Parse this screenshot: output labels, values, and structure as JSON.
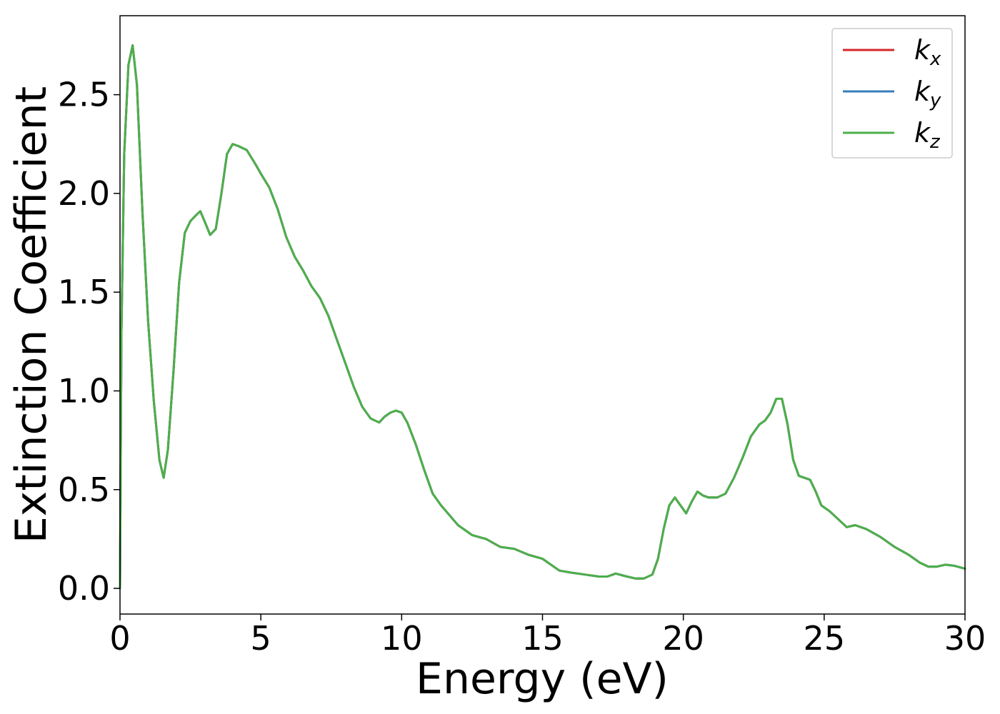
{
  "chart_data": {
    "type": "line",
    "xlabel": "Energy (eV)",
    "ylabel": "Extinction Coefficient",
    "xlim": [
      0,
      30
    ],
    "ylim": [
      -0.13,
      2.9
    ],
    "xticks": [
      0,
      5,
      10,
      15,
      20,
      25,
      30
    ],
    "xtick_labels": [
      "0",
      "5",
      "10",
      "15",
      "20",
      "25",
      "30"
    ],
    "yticks": [
      0.0,
      0.5,
      1.0,
      1.5,
      2.0,
      2.5
    ],
    "ytick_labels": [
      "0.0",
      "0.5",
      "1.0",
      "1.5",
      "2.0",
      "2.5"
    ],
    "grid": false,
    "legend_position": "top-right",
    "series": [
      {
        "name": "k",
        "subscript": "x",
        "color": "#d62728",
        "x": [
          0,
          0.05,
          0.15,
          0.3,
          0.45,
          0.6,
          0.8,
          1.0,
          1.2,
          1.4,
          1.55,
          1.7,
          1.9,
          2.1,
          2.3,
          2.5,
          2.7,
          2.85,
          3.0,
          3.2,
          3.4,
          3.6,
          3.8,
          4.0,
          4.2,
          4.5,
          4.8,
          5.0,
          5.3,
          5.6,
          5.9,
          6.2,
          6.5,
          6.8,
          7.1,
          7.4,
          7.7,
          8.0,
          8.3,
          8.6,
          8.9,
          9.2,
          9.4,
          9.6,
          9.8,
          10.0,
          10.2,
          10.5,
          10.8,
          11.1,
          11.4,
          11.7,
          12.0,
          12.5,
          13.0,
          13.5,
          14.0,
          14.5,
          15.0,
          15.3,
          15.6,
          16.0,
          16.5,
          17.0,
          17.3,
          17.6,
          18.0,
          18.3,
          18.6,
          18.9,
          19.1,
          19.3,
          19.5,
          19.7,
          19.9,
          20.1,
          20.3,
          20.5,
          20.7,
          20.9,
          21.2,
          21.5,
          21.8,
          22.1,
          22.4,
          22.7,
          22.9,
          23.1,
          23.3,
          23.5,
          23.7,
          23.9,
          24.1,
          24.3,
          24.5,
          24.7,
          24.9,
          25.2,
          25.5,
          25.8,
          26.1,
          26.5,
          27.0,
          27.5,
          28.0,
          28.4,
          28.7,
          29.0,
          29.3,
          29.6,
          30.0
        ],
        "y": [
          0.0,
          1.3,
          2.2,
          2.65,
          2.75,
          2.55,
          1.9,
          1.35,
          0.95,
          0.65,
          0.56,
          0.7,
          1.1,
          1.55,
          1.8,
          1.86,
          1.89,
          1.91,
          1.86,
          1.79,
          1.82,
          2.0,
          2.2,
          2.25,
          2.24,
          2.22,
          2.15,
          2.1,
          2.03,
          1.92,
          1.78,
          1.68,
          1.61,
          1.53,
          1.47,
          1.38,
          1.26,
          1.14,
          1.02,
          0.92,
          0.86,
          0.84,
          0.87,
          0.89,
          0.9,
          0.89,
          0.84,
          0.73,
          0.6,
          0.48,
          0.42,
          0.37,
          0.32,
          0.27,
          0.25,
          0.21,
          0.2,
          0.17,
          0.15,
          0.12,
          0.09,
          0.08,
          0.07,
          0.06,
          0.06,
          0.075,
          0.06,
          0.05,
          0.05,
          0.07,
          0.15,
          0.3,
          0.42,
          0.46,
          0.42,
          0.38,
          0.44,
          0.49,
          0.47,
          0.46,
          0.46,
          0.48,
          0.56,
          0.66,
          0.77,
          0.83,
          0.85,
          0.89,
          0.96,
          0.96,
          0.83,
          0.65,
          0.57,
          0.56,
          0.55,
          0.49,
          0.42,
          0.39,
          0.35,
          0.31,
          0.32,
          0.3,
          0.26,
          0.21,
          0.17,
          0.13,
          0.11,
          0.11,
          0.12,
          0.115,
          0.1
        ]
      },
      {
        "name": "k",
        "subscript": "y",
        "color": "#377eb8",
        "x": [
          0,
          0.05,
          0.15,
          0.3,
          0.45,
          0.6,
          0.8,
          1.0,
          1.2,
          1.4,
          1.55,
          1.7,
          1.9,
          2.1,
          2.3,
          2.5,
          2.7,
          2.85,
          3.0,
          3.2,
          3.4,
          3.6,
          3.8,
          4.0,
          4.2,
          4.5,
          4.8,
          5.0,
          5.3,
          5.6,
          5.9,
          6.2,
          6.5,
          6.8,
          7.1,
          7.4,
          7.7,
          8.0,
          8.3,
          8.6,
          8.9,
          9.2,
          9.4,
          9.6,
          9.8,
          10.0,
          10.2,
          10.5,
          10.8,
          11.1,
          11.4,
          11.7,
          12.0,
          12.5,
          13.0,
          13.5,
          14.0,
          14.5,
          15.0,
          15.3,
          15.6,
          16.0,
          16.5,
          17.0,
          17.3,
          17.6,
          18.0,
          18.3,
          18.6,
          18.9,
          19.1,
          19.3,
          19.5,
          19.7,
          19.9,
          20.1,
          20.3,
          20.5,
          20.7,
          20.9,
          21.2,
          21.5,
          21.8,
          22.1,
          22.4,
          22.7,
          22.9,
          23.1,
          23.3,
          23.5,
          23.7,
          23.9,
          24.1,
          24.3,
          24.5,
          24.7,
          24.9,
          25.2,
          25.5,
          25.8,
          26.1,
          26.5,
          27.0,
          27.5,
          28.0,
          28.4,
          28.7,
          29.0,
          29.3,
          29.6,
          30.0
        ],
        "y": [
          0.0,
          1.3,
          2.2,
          2.65,
          2.75,
          2.55,
          1.9,
          1.35,
          0.95,
          0.65,
          0.56,
          0.7,
          1.1,
          1.55,
          1.8,
          1.86,
          1.89,
          1.91,
          1.86,
          1.79,
          1.82,
          2.0,
          2.2,
          2.25,
          2.24,
          2.22,
          2.15,
          2.1,
          2.03,
          1.92,
          1.78,
          1.68,
          1.61,
          1.53,
          1.47,
          1.38,
          1.26,
          1.14,
          1.02,
          0.92,
          0.86,
          0.84,
          0.87,
          0.89,
          0.9,
          0.89,
          0.84,
          0.73,
          0.6,
          0.48,
          0.42,
          0.37,
          0.32,
          0.27,
          0.25,
          0.21,
          0.2,
          0.17,
          0.15,
          0.12,
          0.09,
          0.08,
          0.07,
          0.06,
          0.06,
          0.075,
          0.06,
          0.05,
          0.05,
          0.07,
          0.15,
          0.3,
          0.42,
          0.46,
          0.42,
          0.38,
          0.44,
          0.49,
          0.47,
          0.46,
          0.46,
          0.48,
          0.56,
          0.66,
          0.77,
          0.83,
          0.85,
          0.89,
          0.96,
          0.96,
          0.83,
          0.65,
          0.57,
          0.56,
          0.55,
          0.49,
          0.42,
          0.39,
          0.35,
          0.31,
          0.32,
          0.3,
          0.26,
          0.21,
          0.17,
          0.13,
          0.11,
          0.11,
          0.12,
          0.115,
          0.1
        ]
      },
      {
        "name": "k",
        "subscript": "z",
        "color": "#4daf4a",
        "x": [
          0,
          0.05,
          0.15,
          0.3,
          0.45,
          0.6,
          0.8,
          1.0,
          1.2,
          1.4,
          1.55,
          1.7,
          1.9,
          2.1,
          2.3,
          2.5,
          2.7,
          2.85,
          3.0,
          3.2,
          3.4,
          3.6,
          3.8,
          4.0,
          4.2,
          4.5,
          4.8,
          5.0,
          5.3,
          5.6,
          5.9,
          6.2,
          6.5,
          6.8,
          7.1,
          7.4,
          7.7,
          8.0,
          8.3,
          8.6,
          8.9,
          9.2,
          9.4,
          9.6,
          9.8,
          10.0,
          10.2,
          10.5,
          10.8,
          11.1,
          11.4,
          11.7,
          12.0,
          12.5,
          13.0,
          13.5,
          14.0,
          14.5,
          15.0,
          15.3,
          15.6,
          16.0,
          16.5,
          17.0,
          17.3,
          17.6,
          18.0,
          18.3,
          18.6,
          18.9,
          19.1,
          19.3,
          19.5,
          19.7,
          19.9,
          20.1,
          20.3,
          20.5,
          20.7,
          20.9,
          21.2,
          21.5,
          21.8,
          22.1,
          22.4,
          22.7,
          22.9,
          23.1,
          23.3,
          23.5,
          23.7,
          23.9,
          24.1,
          24.3,
          24.5,
          24.7,
          24.9,
          25.2,
          25.5,
          25.8,
          26.1,
          26.5,
          27.0,
          27.5,
          28.0,
          28.4,
          28.7,
          29.0,
          29.3,
          29.6,
          30.0
        ],
        "y": [
          0.0,
          1.3,
          2.2,
          2.65,
          2.75,
          2.55,
          1.9,
          1.35,
          0.95,
          0.65,
          0.56,
          0.7,
          1.1,
          1.55,
          1.8,
          1.86,
          1.89,
          1.91,
          1.86,
          1.79,
          1.82,
          2.0,
          2.2,
          2.25,
          2.24,
          2.22,
          2.15,
          2.1,
          2.03,
          1.92,
          1.78,
          1.68,
          1.61,
          1.53,
          1.47,
          1.38,
          1.26,
          1.14,
          1.02,
          0.92,
          0.86,
          0.84,
          0.87,
          0.89,
          0.9,
          0.89,
          0.84,
          0.73,
          0.6,
          0.48,
          0.42,
          0.37,
          0.32,
          0.27,
          0.25,
          0.21,
          0.2,
          0.17,
          0.15,
          0.12,
          0.09,
          0.08,
          0.07,
          0.06,
          0.06,
          0.075,
          0.06,
          0.05,
          0.05,
          0.07,
          0.15,
          0.3,
          0.42,
          0.46,
          0.42,
          0.38,
          0.44,
          0.49,
          0.47,
          0.46,
          0.46,
          0.48,
          0.56,
          0.66,
          0.77,
          0.83,
          0.85,
          0.89,
          0.96,
          0.96,
          0.83,
          0.65,
          0.57,
          0.56,
          0.55,
          0.49,
          0.42,
          0.39,
          0.35,
          0.31,
          0.32,
          0.3,
          0.26,
          0.21,
          0.17,
          0.13,
          0.11,
          0.11,
          0.12,
          0.115,
          0.1
        ]
      }
    ]
  }
}
